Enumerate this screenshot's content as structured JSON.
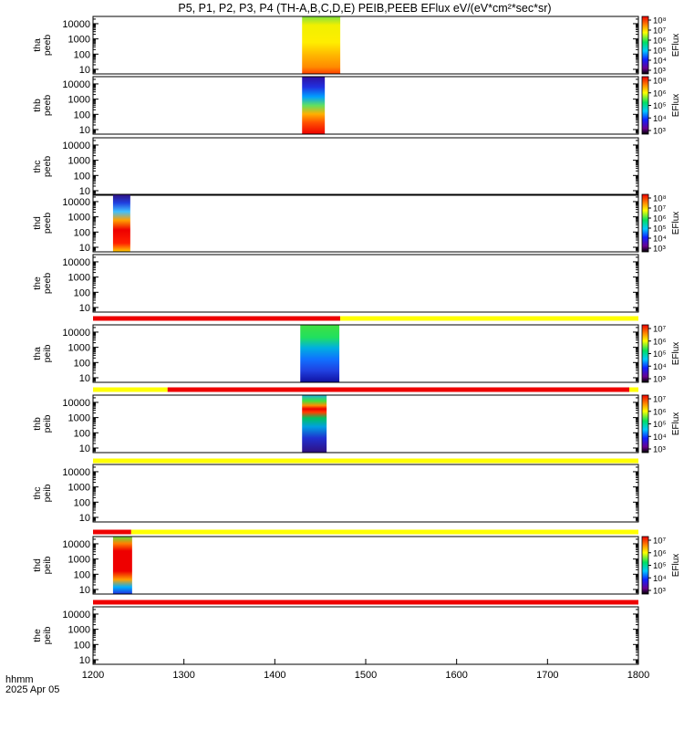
{
  "title": "P5, P1, P2, P3, P4 (TH-A,B,C,D,E) PEIB,PEEB EFlux eV/(eV*cm²*sec*sr)",
  "time_label": "hhmm",
  "date_label": "2025 Apr 05",
  "colorbar_label": "EFlux",
  "colors": {
    "red": "#ee0000",
    "yellow": "#ffff00",
    "black": "#000000"
  },
  "chart_data": {
    "type": "heatmap",
    "x_ticks": [
      "1200",
      "1300",
      "1400",
      "1500",
      "1600",
      "1700",
      "1800"
    ],
    "x_range": [
      1200,
      1800
    ],
    "y_scale": "log",
    "y_range_eV": [
      5,
      30000
    ],
    "y_ticks": [
      "10",
      "100",
      "1000",
      "10000"
    ],
    "panels": [
      {
        "label": [
          "tha",
          "peeb"
        ],
        "spectrogram": {
          "x_start": 1430,
          "x_end": 1472,
          "dominant": "yellow-orange"
        },
        "colorbar_ticks": [
          "10³",
          "10⁴",
          "10⁵",
          "10⁶",
          "10⁷",
          "10⁸"
        ]
      },
      {
        "label": [
          "thb",
          "peeb"
        ],
        "spectrogram": {
          "x_start": 1430,
          "x_end": 1455,
          "dominant": "blue-to-red"
        },
        "colorbar_ticks": [
          "10³",
          "10⁴",
          "10⁵",
          "10⁶",
          "10⁸"
        ]
      },
      {
        "label": [
          "thc",
          "peeb"
        ]
      },
      {
        "label": [
          "thd",
          "peeb"
        ],
        "spectrogram": {
          "x_start": 1222,
          "x_end": 1241,
          "dominant": "blue-to-red"
        },
        "colorbar_ticks": [
          "10³",
          "10⁴",
          "10⁵",
          "10⁶",
          "10⁷",
          "10⁸"
        ]
      },
      {
        "label": [
          "the",
          "peeb"
        ]
      },
      {
        "label": [
          "tha",
          "peib"
        ],
        "spectrogram": {
          "x_start": 1428,
          "x_end": 1471,
          "dominant": "green"
        },
        "colorbar_ticks": [
          "10³",
          "10⁴",
          "10⁵",
          "10⁶",
          "10⁷"
        ]
      },
      {
        "label": [
          "thb",
          "peib"
        ],
        "spectrogram": {
          "x_start": 1430,
          "x_end": 1457,
          "dominant": "blue-green"
        },
        "colorbar_ticks": [
          "10³",
          "10⁴",
          "10⁵",
          "10⁶",
          "10⁷"
        ]
      },
      {
        "label": [
          "thc",
          "peib"
        ]
      },
      {
        "label": [
          "thd",
          "peib"
        ],
        "spectrogram": {
          "x_start": 1222,
          "x_end": 1243,
          "dominant": "red"
        },
        "colorbar_ticks": [
          "10³",
          "10⁴",
          "10⁵",
          "10⁶",
          "10⁷"
        ]
      },
      {
        "label": [
          "the",
          "peib"
        ]
      }
    ],
    "mode_bars": [
      {
        "after_panel": 4,
        "segments": [
          {
            "from": 1200,
            "to": 1472,
            "color": "red"
          },
          {
            "from": 1472,
            "to": 1800,
            "color": "yellow"
          }
        ]
      },
      {
        "after_panel": 5,
        "segments": [
          {
            "from": 1200,
            "to": 1282,
            "color": "yellow"
          },
          {
            "from": 1282,
            "to": 1790,
            "color": "red"
          },
          {
            "from": 1790,
            "to": 1800,
            "color": "yellow"
          }
        ]
      },
      {
        "after_panel": 6,
        "segments": [
          {
            "from": 1200,
            "to": 1800,
            "color": "yellow"
          }
        ]
      },
      {
        "after_panel": 7,
        "segments": [
          {
            "from": 1200,
            "to": 1242,
            "color": "red"
          },
          {
            "from": 1242,
            "to": 1800,
            "color": "yellow"
          }
        ]
      },
      {
        "after_panel": 8,
        "segments": [
          {
            "from": 1200,
            "to": 1800,
            "color": "red"
          }
        ]
      }
    ]
  }
}
